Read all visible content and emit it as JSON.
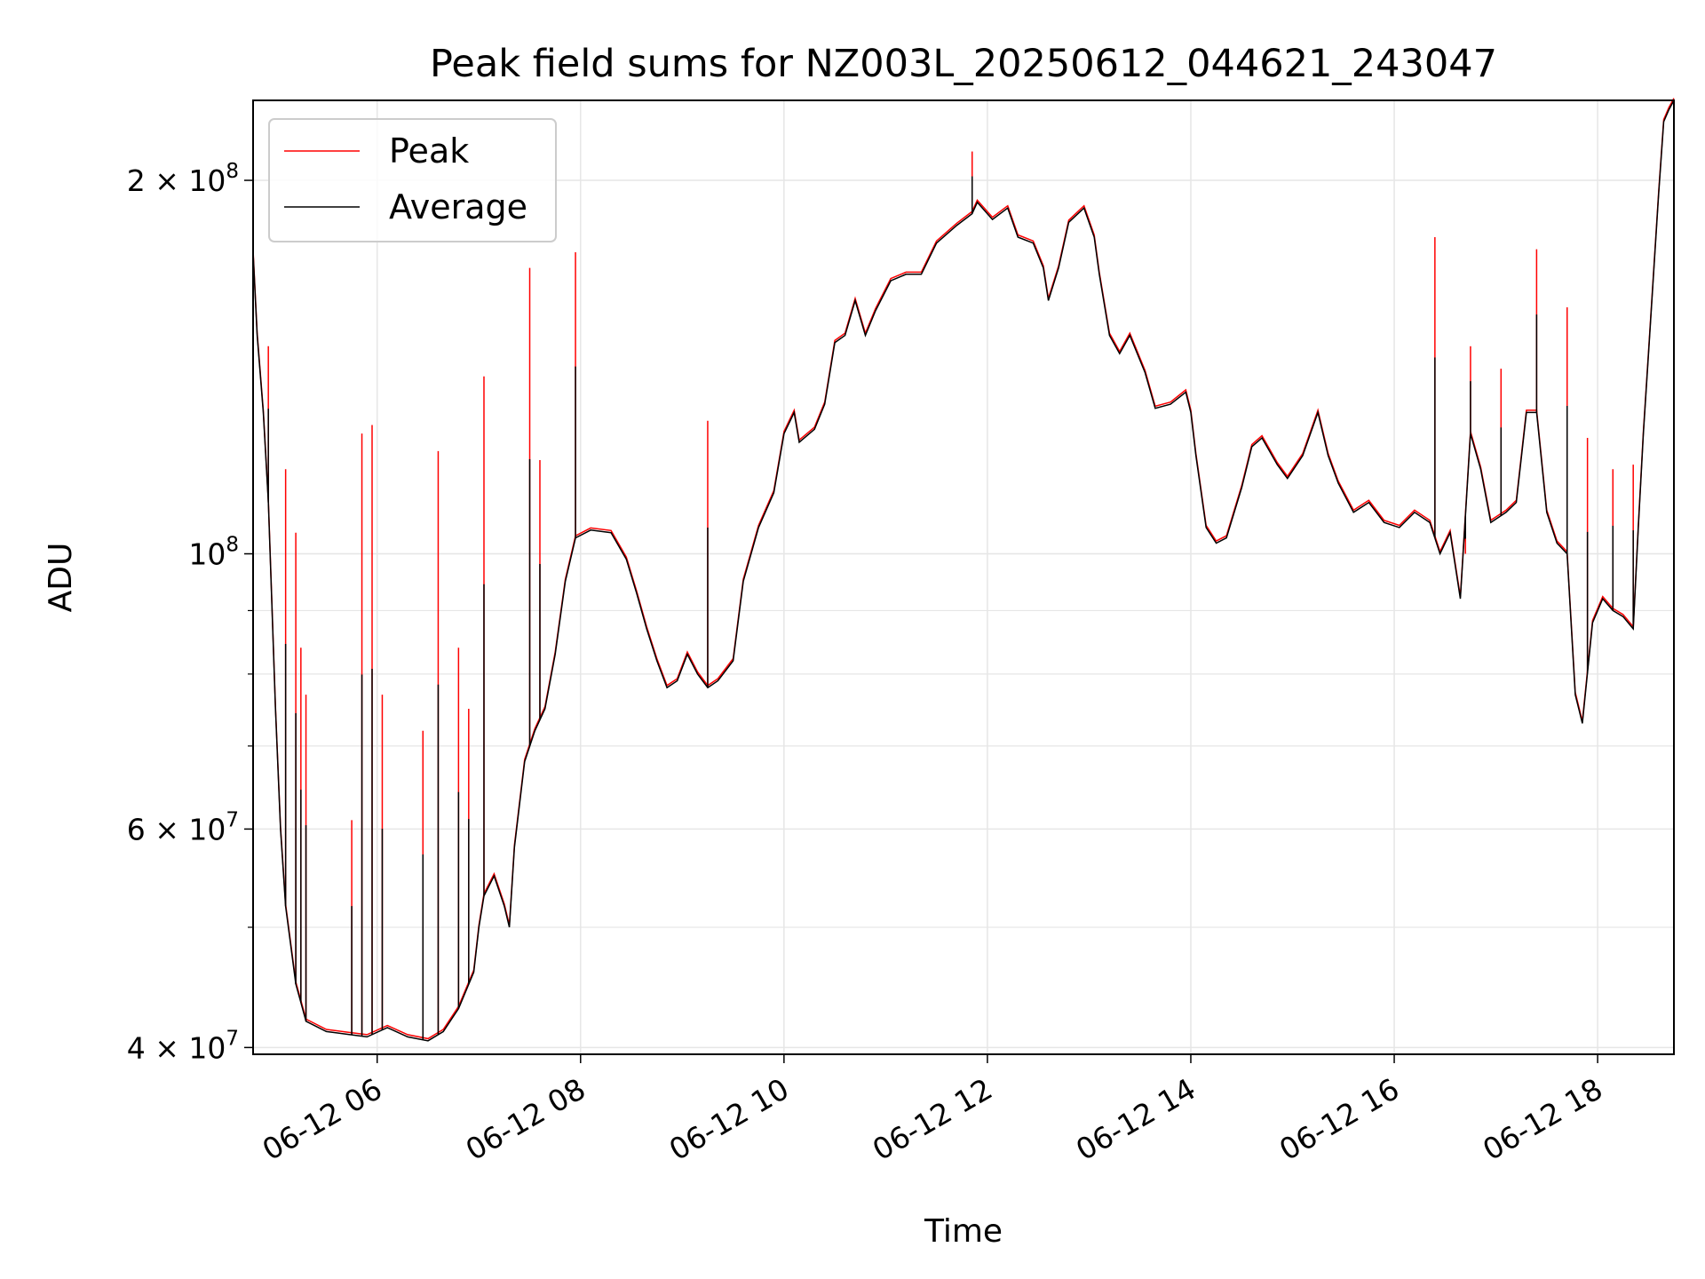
{
  "chart_data": {
    "type": "line",
    "title": "Peak field sums for NZ003L_20250612_044621_243047",
    "xlabel": "Time",
    "ylabel": "ADU",
    "x_unit": "hour of 2025-06-12",
    "xlim": [
      4.78,
      18.75
    ],
    "ylim": [
      39500000,
      232000000
    ],
    "y_scale": "log",
    "grid": true,
    "legend_position": "top-left",
    "x_ticks": [
      {
        "value": 6,
        "label": "06-12 06"
      },
      {
        "value": 8,
        "label": "06-12 08"
      },
      {
        "value": 10,
        "label": "06-12 10"
      },
      {
        "value": 12,
        "label": "06-12 12"
      },
      {
        "value": 14,
        "label": "06-12 14"
      },
      {
        "value": 16,
        "label": "06-12 16"
      },
      {
        "value": 18,
        "label": "06-12 18"
      }
    ],
    "y_ticks": [
      {
        "value": 40000000,
        "base": "4",
        "exp": "7"
      },
      {
        "value": 60000000,
        "base": "6",
        "exp": "7"
      },
      {
        "value": 100000000,
        "base": "",
        "exp": "8"
      },
      {
        "value": 200000000,
        "base": "2",
        "exp": "8"
      }
    ],
    "y_minor_ticks": [
      50000000,
      70000000,
      80000000,
      90000000
    ],
    "series": [
      {
        "name": "Peak",
        "color": "#ff0000",
        "spikes": [
          [
            4.93,
            147000000
          ],
          [
            5.1,
            117000000
          ],
          [
            5.2,
            104000000
          ],
          [
            5.25,
            84000000
          ],
          [
            5.3,
            77000000
          ],
          [
            5.75,
            61000000
          ],
          [
            5.85,
            125000000
          ],
          [
            5.95,
            127000000
          ],
          [
            6.05,
            77000000
          ],
          [
            6.45,
            72000000
          ],
          [
            6.6,
            121000000
          ],
          [
            6.8,
            84000000
          ],
          [
            6.9,
            75000000
          ],
          [
            7.05,
            139000000
          ],
          [
            7.5,
            170000000
          ],
          [
            7.6,
            119000000
          ],
          [
            7.95,
            175000000
          ],
          [
            9.25,
            128000000
          ],
          [
            11.85,
            211000000
          ],
          [
            16.4,
            180000000
          ],
          [
            16.7,
            100000000
          ],
          [
            16.75,
            147000000
          ],
          [
            17.05,
            141000000
          ],
          [
            17.4,
            176000000
          ],
          [
            17.7,
            158000000
          ],
          [
            17.9,
            124000000
          ],
          [
            18.15,
            117000000
          ],
          [
            18.35,
            118000000
          ]
        ]
      },
      {
        "name": "Average",
        "color": "#000000",
        "values": [
          [
            4.78,
            175000000
          ],
          [
            4.82,
            150000000
          ],
          [
            4.88,
            130000000
          ],
          [
            4.93,
            110000000
          ],
          [
            5.0,
            75000000
          ],
          [
            5.05,
            60000000
          ],
          [
            5.1,
            52000000
          ],
          [
            5.2,
            45000000
          ],
          [
            5.3,
            42000000
          ],
          [
            5.5,
            41200000
          ],
          [
            5.7,
            41000000
          ],
          [
            5.9,
            40800000
          ],
          [
            6.1,
            41500000
          ],
          [
            6.3,
            40800000
          ],
          [
            6.5,
            40500000
          ],
          [
            6.65,
            41200000
          ],
          [
            6.8,
            43000000
          ],
          [
            6.95,
            46000000
          ],
          [
            7.0,
            50000000
          ],
          [
            7.05,
            53000000
          ],
          [
            7.15,
            55000000
          ],
          [
            7.25,
            52000000
          ],
          [
            7.3,
            50000000
          ],
          [
            7.35,
            58000000
          ],
          [
            7.45,
            68000000
          ],
          [
            7.55,
            72000000
          ],
          [
            7.65,
            75000000
          ],
          [
            7.75,
            83000000
          ],
          [
            7.85,
            95000000
          ],
          [
            7.95,
            103000000
          ],
          [
            8.1,
            104500000
          ],
          [
            8.3,
            104000000
          ],
          [
            8.45,
            99000000
          ],
          [
            8.55,
            93000000
          ],
          [
            8.65,
            87000000
          ],
          [
            8.75,
            82000000
          ],
          [
            8.85,
            78000000
          ],
          [
            8.95,
            79000000
          ],
          [
            9.05,
            83000000
          ],
          [
            9.15,
            80000000
          ],
          [
            9.25,
            78000000
          ],
          [
            9.35,
            79000000
          ],
          [
            9.5,
            82000000
          ],
          [
            9.6,
            95000000
          ],
          [
            9.75,
            105000000
          ],
          [
            9.9,
            112000000
          ],
          [
            10.0,
            125000000
          ],
          [
            10.1,
            130000000
          ],
          [
            10.15,
            123000000
          ],
          [
            10.3,
            126000000
          ],
          [
            10.4,
            132000000
          ],
          [
            10.5,
            148000000
          ],
          [
            10.6,
            150000000
          ],
          [
            10.7,
            160000000
          ],
          [
            10.8,
            150000000
          ],
          [
            10.9,
            157000000
          ],
          [
            11.05,
            166000000
          ],
          [
            11.2,
            168000000
          ],
          [
            11.35,
            168000000
          ],
          [
            11.5,
            178000000
          ],
          [
            11.7,
            184000000
          ],
          [
            11.85,
            188000000
          ],
          [
            11.9,
            192000000
          ],
          [
            12.05,
            186000000
          ],
          [
            12.2,
            190000000
          ],
          [
            12.3,
            180000000
          ],
          [
            12.45,
            178000000
          ],
          [
            12.55,
            170000000
          ],
          [
            12.6,
            160000000
          ],
          [
            12.7,
            170000000
          ],
          [
            12.8,
            185000000
          ],
          [
            12.95,
            190000000
          ],
          [
            13.05,
            180000000
          ],
          [
            13.1,
            168000000
          ],
          [
            13.2,
            150000000
          ],
          [
            13.3,
            145000000
          ],
          [
            13.4,
            150000000
          ],
          [
            13.55,
            140000000
          ],
          [
            13.65,
            131000000
          ],
          [
            13.8,
            132000000
          ],
          [
            13.95,
            135000000
          ],
          [
            14.0,
            130000000
          ],
          [
            14.05,
            120000000
          ],
          [
            14.15,
            105000000
          ],
          [
            14.25,
            102000000
          ],
          [
            14.35,
            103000000
          ],
          [
            14.5,
            113000000
          ],
          [
            14.6,
            122000000
          ],
          [
            14.7,
            124000000
          ],
          [
            14.85,
            118000000
          ],
          [
            14.95,
            115000000
          ],
          [
            15.1,
            120000000
          ],
          [
            15.25,
            130000000
          ],
          [
            15.35,
            120000000
          ],
          [
            15.45,
            114000000
          ],
          [
            15.6,
            108000000
          ],
          [
            15.75,
            110000000
          ],
          [
            15.9,
            106000000
          ],
          [
            16.05,
            105000000
          ],
          [
            16.2,
            108000000
          ],
          [
            16.35,
            106000000
          ],
          [
            16.45,
            100000000
          ],
          [
            16.55,
            104000000
          ],
          [
            16.65,
            92000000
          ],
          [
            16.75,
            125000000
          ],
          [
            16.85,
            117000000
          ],
          [
            16.95,
            106000000
          ],
          [
            17.1,
            108000000
          ],
          [
            17.2,
            110000000
          ],
          [
            17.3,
            130000000
          ],
          [
            17.4,
            130000000
          ],
          [
            17.5,
            108000000
          ],
          [
            17.6,
            102000000
          ],
          [
            17.7,
            100000000
          ],
          [
            17.78,
            77000000
          ],
          [
            17.85,
            73000000
          ],
          [
            17.95,
            88000000
          ],
          [
            18.05,
            92000000
          ],
          [
            18.15,
            90000000
          ],
          [
            18.25,
            89000000
          ],
          [
            18.35,
            87000000
          ],
          [
            18.4,
            105000000
          ],
          [
            18.45,
            125000000
          ],
          [
            18.5,
            145000000
          ],
          [
            18.6,
            195000000
          ],
          [
            18.65,
            223000000
          ],
          [
            18.7,
            228000000
          ],
          [
            18.75,
            232000000
          ]
        ]
      }
    ]
  }
}
